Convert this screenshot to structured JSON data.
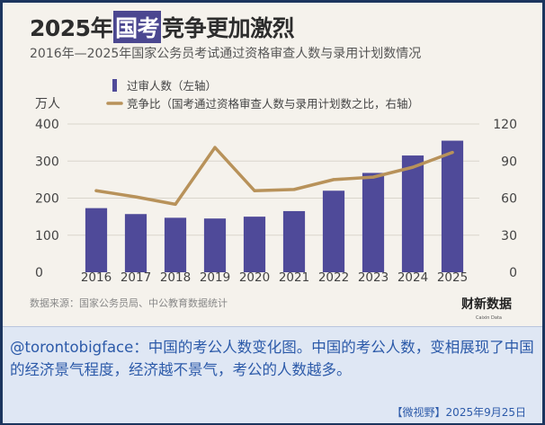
{
  "title": {
    "part1": "2025年",
    "highlight": "国考",
    "part2": "竞争更加激烈"
  },
  "subtitle": "2016年—2025年国家公务员考试通过资格审查人数与录用计划数情况",
  "left_unit": "万人",
  "legend": {
    "bar_label": "过审人数（左轴）",
    "line_label": "竞争比（国考通过资格审查人数与录用计划数之比，右轴）"
  },
  "colors": {
    "bar": "#4f4a99",
    "line": "#b8925a",
    "grid": "#d9d5cc",
    "caption": "#2c5aa9"
  },
  "source": "数据来源：国家公务员局、中公教育数据统计",
  "logo_text": "财新数据",
  "logo_sub": "Caixin Data",
  "caption": "@torontobigface：中国的考公人数变化图。中国的考公人数，变相展现了中国的经济景气程度，经济越不景气，考公的人数越多。",
  "footer": "【微视野】2025年9月25日",
  "chart_data": {
    "type": "bar",
    "categories": [
      "2016",
      "2017",
      "2018",
      "2019",
      "2020",
      "2021",
      "2022",
      "2023",
      "2024",
      "2025"
    ],
    "series": [
      {
        "name": "过审人数（左轴）",
        "type": "bar",
        "axis": "left",
        "values": [
          173,
          157,
          147,
          145,
          150,
          165,
          220,
          268,
          315,
          355
        ]
      },
      {
        "name": "竞争比（国考通过资格审查人数与录用计划数之比，右轴）",
        "type": "line",
        "axis": "right",
        "values": [
          66,
          61,
          55,
          101,
          66,
          67,
          75,
          77,
          85,
          97
        ]
      }
    ],
    "y_left": {
      "ticks": [
        "0",
        "100",
        "200",
        "300",
        "400"
      ],
      "range": [
        0,
        400
      ]
    },
    "y_right": {
      "ticks": [
        "0",
        "30",
        "60",
        "90",
        "120"
      ],
      "range": [
        0,
        120
      ]
    },
    "grid": true,
    "legend_position": "top-left"
  }
}
